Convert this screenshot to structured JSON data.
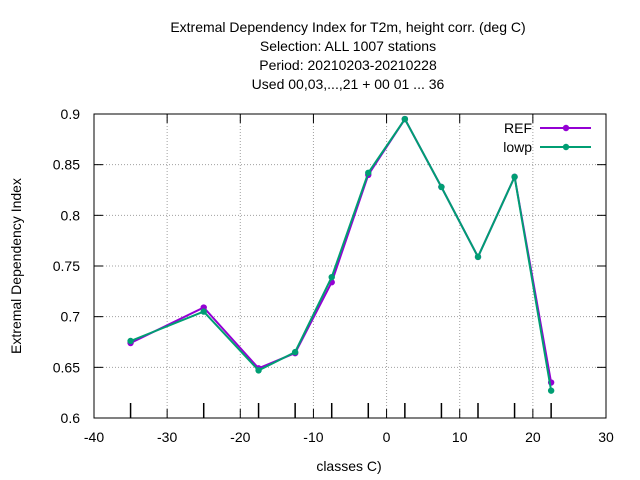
{
  "chart_data": {
    "type": "line",
    "title_lines": [
      "Extremal Dependency Index  for T2m, height corr. (deg C)",
      "Selection: ALL   1007 stations",
      "Period: 20210203-20210228",
      "Used  00,03,...,21  + 00 01 ... 36"
    ],
    "xlabel": "classes C)",
    "ylabel": "Extremal Dependency Index",
    "xlim": [
      -40,
      30
    ],
    "ylim": [
      0.6,
      0.9
    ],
    "xticks": [
      -40,
      -30,
      -20,
      -10,
      0,
      10,
      20,
      30
    ],
    "xtick_labels": [
      "-40",
      "-30",
      "-20",
      "-10",
      "0",
      "10",
      "20",
      "30"
    ],
    "yticks": [
      0.6,
      0.65,
      0.7,
      0.75,
      0.8,
      0.85,
      0.9
    ],
    "ytick_labels": [
      "0.6",
      "0.65",
      "0.7",
      "0.75",
      "0.8",
      "0.85",
      "0.9"
    ],
    "minor_xticks": [
      -35,
      -25,
      -17.5,
      -12.5,
      -7.5,
      -2.5,
      2.5,
      7.5,
      12.5,
      17.5,
      22.5
    ],
    "grid": true,
    "legend_position": "top-right",
    "series": [
      {
        "name": "REF",
        "color": "#9400d3",
        "x": [
          -35,
          -25,
          -17.5,
          -12.5,
          -7.5,
          -2.5,
          2.5,
          7.5,
          12.5,
          17.5,
          22.5
        ],
        "y": [
          0.674,
          0.709,
          0.649,
          0.664,
          0.734,
          0.84,
          0.895,
          0.828,
          0.759,
          0.838,
          0.635
        ]
      },
      {
        "name": "lowp",
        "color": "#009e73",
        "x": [
          -35,
          -25,
          -17.5,
          -12.5,
          -7.5,
          -2.5,
          2.5,
          7.5,
          12.5,
          17.5,
          22.5
        ],
        "y": [
          0.676,
          0.705,
          0.647,
          0.665,
          0.739,
          0.842,
          0.895,
          0.828,
          0.759,
          0.838,
          0.627
        ]
      }
    ]
  }
}
